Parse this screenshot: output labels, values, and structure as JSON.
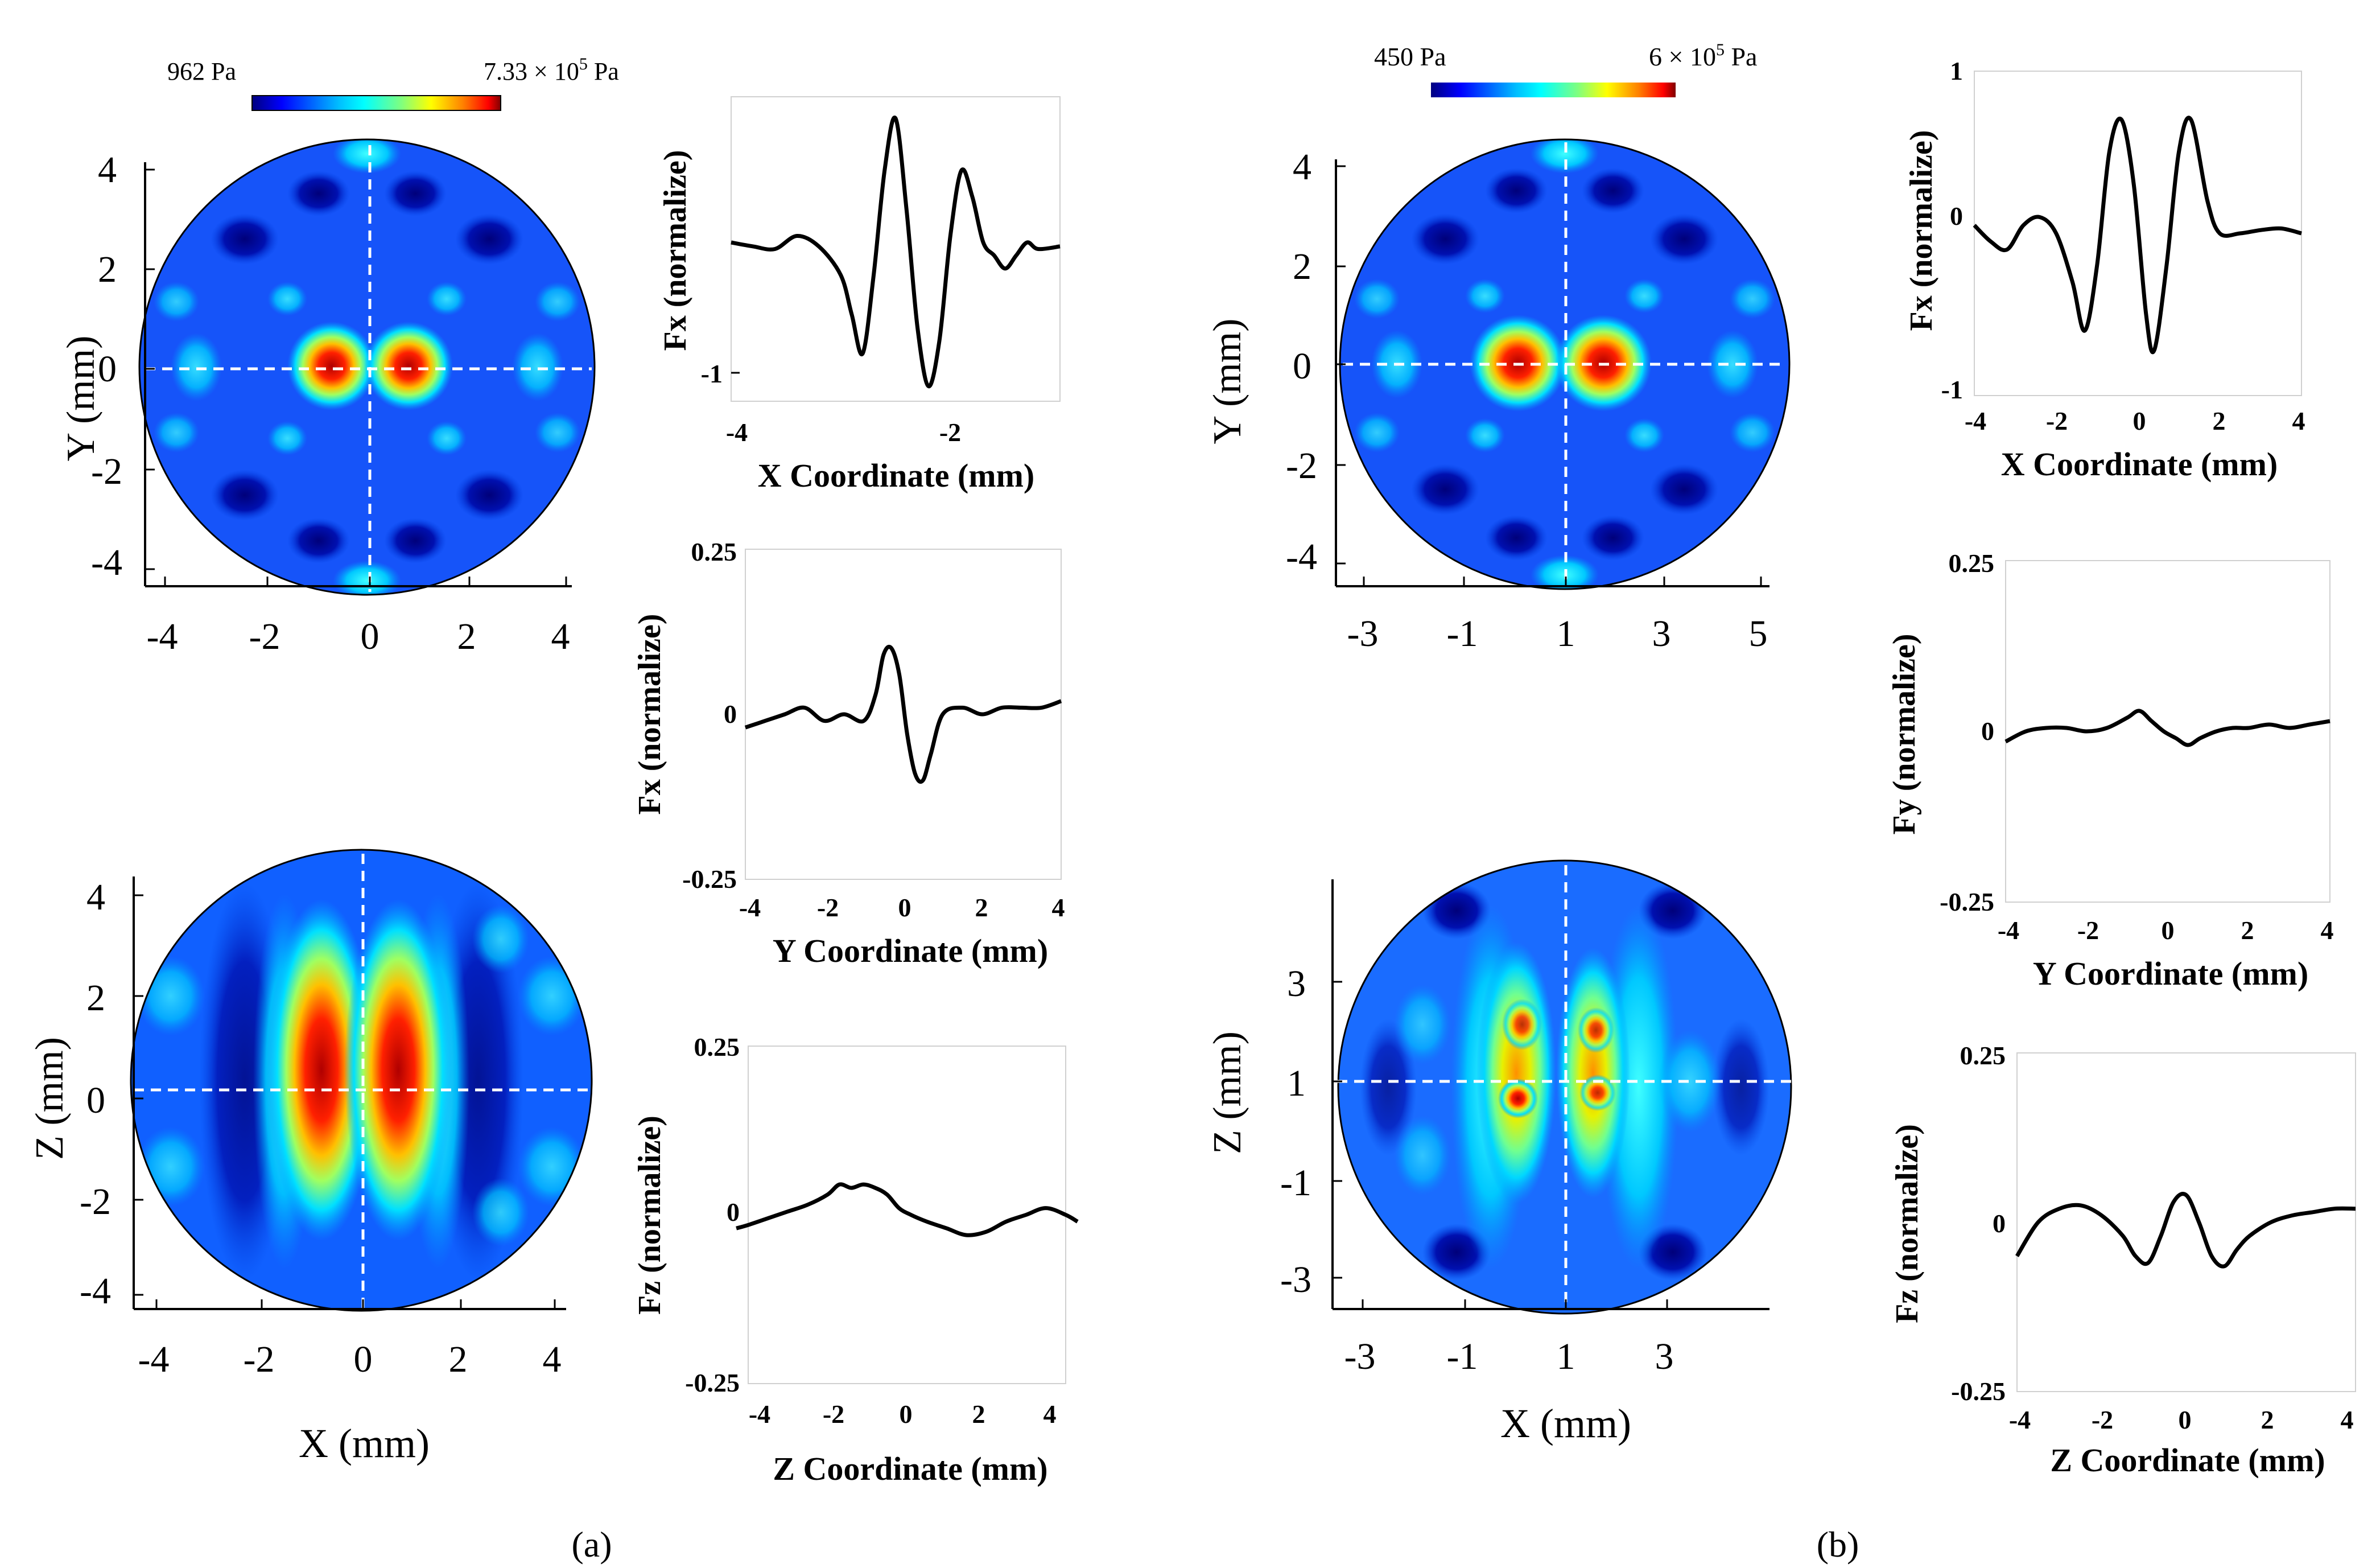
{
  "panel_a": {
    "label_a": "a",
    "colorbar": {
      "min_label": "962 Pa",
      "max_mantissa": "7.33 × 10",
      "max_exp": "5",
      "max_unit": " Pa"
    },
    "xy_map": {
      "xlabel": "",
      "ylabel": "Y (mm)",
      "xticks": [
        "-4",
        "-2",
        "0",
        "2",
        "4"
      ],
      "yticks": [
        "4",
        "2",
        "0",
        "-2",
        "-4"
      ]
    },
    "xz_map": {
      "xlabel": "X (mm)",
      "ylabel": "Z (mm)",
      "xticks": [
        "-4",
        "-2",
        "0",
        "2",
        "4"
      ],
      "yticks": [
        "4",
        "2",
        "0",
        "-2",
        "-4"
      ]
    },
    "fx_plot": {
      "ylabel": "Fx (normalize)",
      "xlabel": "X Coordinate (mm)",
      "xticks": [
        "-4",
        "-2"
      ],
      "yticks": [
        "-1"
      ]
    },
    "fy_plot": {
      "ylabel": "Fx (normalize)",
      "xlabel": "Y Coordinate (mm)",
      "xticks": [
        "-4",
        "-2",
        "0",
        "2",
        "4"
      ],
      "yticks": [
        "0.25",
        "0",
        "-0.25"
      ]
    },
    "fz_plot": {
      "ylabel": "Fz (normalize)",
      "xlabel": "Z Coordinate (mm)",
      "xticks": [
        "-4",
        "-2",
        "0",
        "2",
        "4"
      ],
      "yticks": [
        "0.25",
        "0",
        "-0.25"
      ]
    }
  },
  "panel_b": {
    "label_b": "b",
    "colorbar": {
      "min_label": "450 Pa",
      "max_mantissa": "6 × 10",
      "max_exp": "5",
      "max_unit": " Pa"
    },
    "xy_map": {
      "xlabel": "",
      "ylabel": "Y (mm)",
      "xticks": [
        "-3",
        "-1",
        "1",
        "3",
        "5"
      ],
      "yticks": [
        "4",
        "2",
        "0",
        "-2",
        "-4"
      ]
    },
    "xz_map": {
      "xlabel": "X (mm)",
      "ylabel": "Z (mm)",
      "xticks": [
        "-3",
        "-1",
        "1",
        "3"
      ],
      "yticks": [
        "3",
        "1",
        "-1",
        "-3"
      ]
    },
    "fx_plot": {
      "ylabel": "Fx (normalize)",
      "xlabel": "X Coordinate (mm)",
      "xticks": [
        "-4",
        "-2",
        "0",
        "2",
        "4"
      ],
      "yticks": [
        "1",
        "0",
        "-1"
      ]
    },
    "fy_plot": {
      "ylabel": "Fy (normalize)",
      "xlabel": "Y Coordinate (mm)",
      "xticks": [
        "-4",
        "-2",
        "0",
        "2",
        "4"
      ],
      "yticks": [
        "0.25",
        "0",
        "-0.25"
      ]
    },
    "fz_plot": {
      "ylabel": "Fz (normalize)",
      "xlabel": "Z Coordinate (mm)",
      "xticks": [
        "-4",
        "-2",
        "0",
        "2",
        "4"
      ],
      "yticks": [
        "0.25",
        "0",
        "-0.25"
      ]
    }
  },
  "colormap": [
    "#00007f",
    "#0000ff",
    "#007fff",
    "#00ffff",
    "#7fff7f",
    "#ffff00",
    "#ff7f00",
    "#ff0000",
    "#7f0000"
  ],
  "line_color": "#000000",
  "chart_data": [
    {
      "id": "a_fx",
      "type": "line",
      "xlim": [
        -4,
        -1
      ],
      "ylim": [
        -1.1,
        1.1
      ],
      "x": [
        -4,
        -3.8,
        -3.6,
        -3.4,
        -3.2,
        -3.0,
        -2.9,
        -2.8,
        -2.7,
        -2.6,
        -2.5,
        -2.4,
        -2.3,
        -2.2,
        -2.1,
        -2.0,
        -1.9,
        -1.8,
        -1.7,
        -1.6,
        -1.5,
        -1.4,
        -1.3,
        -1.2,
        -1.0
      ],
      "y": [
        0.05,
        0.02,
        0.0,
        0.1,
        0.02,
        -0.2,
        -0.5,
        -0.8,
        -0.2,
        0.6,
        1.0,
        0.3,
        -0.6,
        -1.05,
        -0.7,
        0.1,
        0.6,
        0.4,
        0.05,
        -0.05,
        -0.15,
        -0.05,
        0.05,
        0.0,
        0.02
      ]
    },
    {
      "id": "a_fy",
      "type": "line",
      "xlim": [
        -4,
        4
      ],
      "ylim": [
        -0.25,
        0.25
      ],
      "x": [
        -4,
        -3.5,
        -3,
        -2.5,
        -2,
        -1.5,
        -1.0,
        -0.7,
        -0.5,
        -0.3,
        -0.1,
        0.1,
        0.3,
        0.5,
        0.7,
        1.0,
        1.5,
        2,
        2.5,
        3,
        3.5,
        4
      ],
      "y": [
        -0.02,
        -0.01,
        0.0,
        0.01,
        -0.01,
        0.0,
        -0.01,
        0.03,
        0.09,
        0.1,
        0.06,
        -0.03,
        -0.09,
        -0.1,
        -0.06,
        0.0,
        0.01,
        0.0,
        0.01,
        0.01,
        0.01,
        0.02
      ]
    },
    {
      "id": "a_fz",
      "type": "line",
      "xlim": [
        -4,
        4
      ],
      "ylim": [
        -0.25,
        0.25
      ],
      "x": [
        -4.3,
        -4,
        -3.5,
        -3,
        -2.5,
        -2,
        -1.7,
        -1.4,
        -1.1,
        -0.8,
        -0.5,
        -0.2,
        0.1,
        0.5,
        1.0,
        1.5,
        2.0,
        2.5,
        3.0,
        3.5,
        4.0,
        4.3
      ],
      "y": [
        -0.02,
        -0.015,
        -0.005,
        0.005,
        0.015,
        0.03,
        0.045,
        0.04,
        0.045,
        0.04,
        0.03,
        0.01,
        0.0,
        -0.01,
        -0.02,
        -0.03,
        -0.025,
        -0.01,
        0.0,
        0.01,
        0.0,
        -0.01
      ]
    },
    {
      "id": "b_fx",
      "type": "line",
      "xlim": [
        -4,
        4
      ],
      "ylim": [
        -1,
        1
      ],
      "x": [
        -4,
        -3.6,
        -3.2,
        -2.8,
        -2.4,
        -2.0,
        -1.6,
        -1.3,
        -1.0,
        -0.7,
        -0.4,
        -0.1,
        0.2,
        0.4,
        0.7,
        1.0,
        1.3,
        1.7,
        2.0,
        2.5,
        3.0,
        3.5,
        4.0
      ],
      "y": [
        0.05,
        -0.05,
        -0.1,
        0.05,
        0.1,
        0.0,
        -0.3,
        -0.6,
        -0.2,
        0.5,
        0.7,
        0.3,
        -0.5,
        -0.72,
        -0.2,
        0.5,
        0.7,
        0.2,
        0.0,
        0.0,
        0.02,
        0.03,
        0.0
      ]
    },
    {
      "id": "b_fy",
      "type": "line",
      "xlim": [
        -4,
        4
      ],
      "ylim": [
        -0.25,
        0.25
      ],
      "x": [
        -4,
        -3.5,
        -3,
        -2.5,
        -2,
        -1.5,
        -1.0,
        -0.7,
        -0.4,
        -0.1,
        0.2,
        0.5,
        0.8,
        1.2,
        1.6,
        2.0,
        2.5,
        3,
        3.5,
        4
      ],
      "y": [
        -0.015,
        0.0,
        0.005,
        0.005,
        0.0,
        0.005,
        0.02,
        0.03,
        0.015,
        0.0,
        -0.01,
        -0.02,
        -0.01,
        0.0,
        0.005,
        0.005,
        0.01,
        0.005,
        0.01,
        0.015
      ]
    },
    {
      "id": "b_fz",
      "type": "line",
      "xlim": [
        -4,
        4
      ],
      "ylim": [
        -0.25,
        0.25
      ],
      "x": [
        -4,
        -3.5,
        -3,
        -2.5,
        -2,
        -1.5,
        -1.2,
        -0.9,
        -0.6,
        -0.3,
        0.0,
        0.3,
        0.6,
        0.9,
        1.2,
        1.5,
        2.0,
        2.5,
        3.0,
        3.5,
        4.0
      ],
      "y": [
        -0.05,
        0.0,
        0.02,
        0.025,
        0.01,
        -0.02,
        -0.05,
        -0.06,
        -0.02,
        0.03,
        0.04,
        0.0,
        -0.05,
        -0.065,
        -0.04,
        -0.02,
        0.0,
        0.01,
        0.015,
        0.02,
        0.02
      ]
    }
  ]
}
